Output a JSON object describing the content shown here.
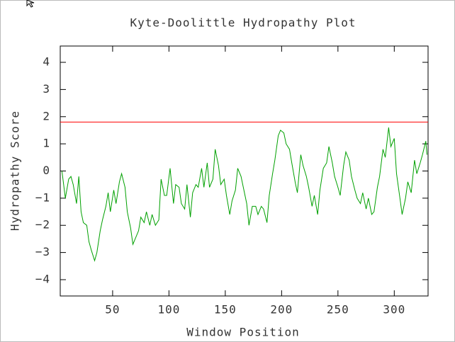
{
  "chart_data": {
    "type": "line",
    "title": "Kyte-Doolittle Hydropathy Plot",
    "xlabel": "Window Position",
    "ylabel": "Hydropathy Score",
    "xlim": [
      3.5,
      330
    ],
    "ylim": [
      -4.6,
      4.6
    ],
    "xticks": [
      50,
      100,
      150,
      200,
      250,
      300
    ],
    "yticks": [
      4,
      3,
      2,
      1,
      0,
      -1,
      -2,
      -3,
      -4
    ],
    "yticks_labels": [
      "4",
      "3",
      "2",
      "1",
      "0",
      "−1",
      "−2",
      "−3",
      "−4"
    ],
    "color": "#00a000",
    "threshold": {
      "value": 1.8,
      "color": "#ff0000"
    },
    "x": [
      5,
      8,
      11,
      13,
      15,
      18,
      20,
      22,
      24,
      27,
      29,
      31,
      34,
      36,
      39,
      41,
      44,
      46,
      48,
      51,
      53,
      56,
      58,
      61,
      63,
      66,
      68,
      70,
      73,
      75,
      78,
      80,
      83,
      85,
      88,
      91,
      93,
      96,
      98,
      101,
      104,
      106,
      109,
      111,
      114,
      116,
      119,
      121,
      124,
      126,
      129,
      131,
      134,
      136,
      139,
      141,
      144,
      146,
      149,
      151,
      154,
      156,
      159,
      161,
      164,
      166,
      169,
      171,
      174,
      177,
      179,
      182,
      184,
      187,
      189,
      192,
      194,
      197,
      199,
      202,
      204,
      207,
      209,
      212,
      214,
      217,
      219,
      222,
      224,
      227,
      229,
      232,
      234,
      237,
      240,
      242,
      245,
      247,
      250,
      252,
      255,
      257,
      260,
      262,
      265,
      267,
      270,
      272,
      275,
      277,
      280,
      282,
      285,
      287,
      290,
      292,
      295,
      297,
      300,
      302,
      305,
      307,
      310,
      312,
      315,
      318,
      320,
      323,
      325,
      328,
      329
    ],
    "values": [
      0,
      -1,
      -0.3,
      -0.2,
      -0.5,
      -1.2,
      -0.2,
      -1.5,
      -1.9,
      -2.0,
      -2.6,
      -2.9,
      -3.3,
      -3.0,
      -2.2,
      -1.8,
      -1.3,
      -0.8,
      -1.5,
      -0.7,
      -1.2,
      -0.4,
      -0.1,
      -0.6,
      -1.5,
      -2.1,
      -2.7,
      -2.5,
      -2.2,
      -1.7,
      -1.9,
      -1.5,
      -2.0,
      -1.6,
      -2.0,
      -1.8,
      -0.3,
      -0.9,
      -0.9,
      0.1,
      -1.2,
      -0.5,
      -0.6,
      -1.2,
      -1.4,
      -0.5,
      -1.7,
      -0.8,
      -0.5,
      -0.6,
      0.1,
      -0.6,
      0.3,
      -0.6,
      -0.3,
      0.8,
      0.2,
      -0.5,
      -0.3,
      -0.9,
      -1.6,
      -1.1,
      -0.7,
      0.1,
      -0.2,
      -0.6,
      -1.2,
      -2.0,
      -1.3,
      -1.3,
      -1.6,
      -1.3,
      -1.4,
      -1.9,
      -0.9,
      -0.1,
      0.4,
      1.3,
      1.5,
      1.4,
      1.0,
      0.8,
      0.3,
      -0.4,
      -0.8,
      0.6,
      0.2,
      -0.2,
      -0.6,
      -1.3,
      -0.9,
      -1.6,
      -0.7,
      0.1,
      0.3,
      0.9,
      0.3,
      -0.2,
      -0.6,
      -0.9,
      0.2,
      0.7,
      0.4,
      -0.2,
      -0.7,
      -1.0,
      -1.2,
      -0.8,
      -1.4,
      -1.0,
      -1.6,
      -1.5,
      -0.6,
      -0.2,
      0.8,
      0.5,
      1.6,
      0.9,
      1.2,
      -0.1,
      -1.0,
      -1.6,
      -1.0,
      -0.4,
      -0.8,
      0.4,
      -0.1,
      0.3,
      0.6,
      1.1,
      0.6
    ]
  }
}
